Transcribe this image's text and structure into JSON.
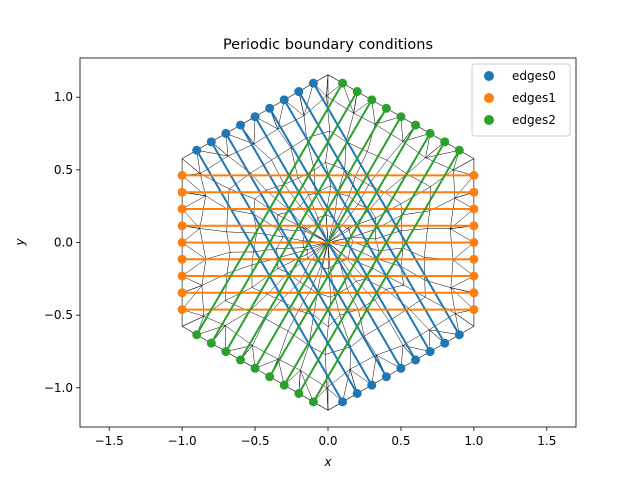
{
  "chart_data": {
    "type": "scatter",
    "title": "Periodic boundary conditions",
    "xlabel": "x",
    "ylabel": "y",
    "xlim": [
      -1.7,
      1.7
    ],
    "ylim": [
      -1.27,
      1.27
    ],
    "xticks": [
      -1.5,
      -1.0,
      -0.5,
      0.0,
      0.5,
      1.0,
      1.5
    ],
    "xtick_labels": [
      "−1.5",
      "−1.0",
      "−0.5",
      "0.0",
      "0.5",
      "1.0",
      "1.5"
    ],
    "yticks": [
      -1.0,
      -0.5,
      0.0,
      0.5,
      1.0
    ],
    "ytick_labels": [
      "−1.0",
      "−0.5",
      "0.0",
      "0.5",
      "1.0"
    ],
    "grid": false,
    "legend_position": "top-right",
    "mesh": {
      "description": "triangulated hexagonal domain",
      "hexagon_vertices": [
        [
          1.0,
          0.577
        ],
        [
          0.0,
          1.155
        ],
        [
          -1.0,
          0.577
        ],
        [
          -1.0,
          -0.577
        ],
        [
          0.0,
          -1.155
        ],
        [
          1.0,
          -0.577
        ]
      ],
      "color": "#000000"
    },
    "series": [
      {
        "name": "edges0",
        "color": "#1f77b4",
        "x": [
          -0.9,
          -0.8,
          -0.7,
          -0.6,
          -0.5,
          -0.4,
          -0.3,
          -0.2,
          -0.1
        ],
        "y": [
          0.635,
          0.693,
          0.751,
          0.808,
          0.866,
          0.924,
          0.982,
          1.039,
          1.097
        ],
        "partner_x": [
          0.1,
          0.2,
          0.3,
          0.4,
          0.5,
          0.6,
          0.7,
          0.8,
          0.9
        ],
        "partner_y": [
          -1.097,
          -1.039,
          -0.982,
          -0.924,
          -0.866,
          -0.808,
          -0.751,
          -0.693,
          -0.635
        ]
      },
      {
        "name": "edges1",
        "color": "#ff7f0e",
        "x": [
          -1.0,
          -1.0,
          -1.0,
          -1.0,
          -1.0,
          -1.0,
          -1.0,
          -1.0,
          -1.0
        ],
        "y": [
          0.462,
          0.346,
          0.231,
          0.115,
          0.0,
          -0.115,
          -0.231,
          -0.346,
          -0.462
        ],
        "partner_x": [
          1.0,
          1.0,
          1.0,
          1.0,
          1.0,
          1.0,
          1.0,
          1.0,
          1.0
        ],
        "partner_y": [
          0.462,
          0.346,
          0.231,
          0.115,
          0.0,
          -0.115,
          -0.231,
          -0.346,
          -0.462
        ]
      },
      {
        "name": "edges2",
        "color": "#2ca02c",
        "x": [
          0.1,
          0.2,
          0.3,
          0.4,
          0.5,
          0.6,
          0.7,
          0.8,
          0.9
        ],
        "y": [
          1.097,
          1.039,
          0.982,
          0.924,
          0.866,
          0.808,
          0.751,
          0.693,
          0.635
        ],
        "partner_x": [
          -0.9,
          -0.8,
          -0.7,
          -0.6,
          -0.5,
          -0.4,
          -0.3,
          -0.2,
          -0.1
        ],
        "partner_y": [
          -0.635,
          -0.693,
          -0.751,
          -0.808,
          -0.866,
          -0.924,
          -0.982,
          -1.039,
          -1.097
        ]
      }
    ]
  }
}
